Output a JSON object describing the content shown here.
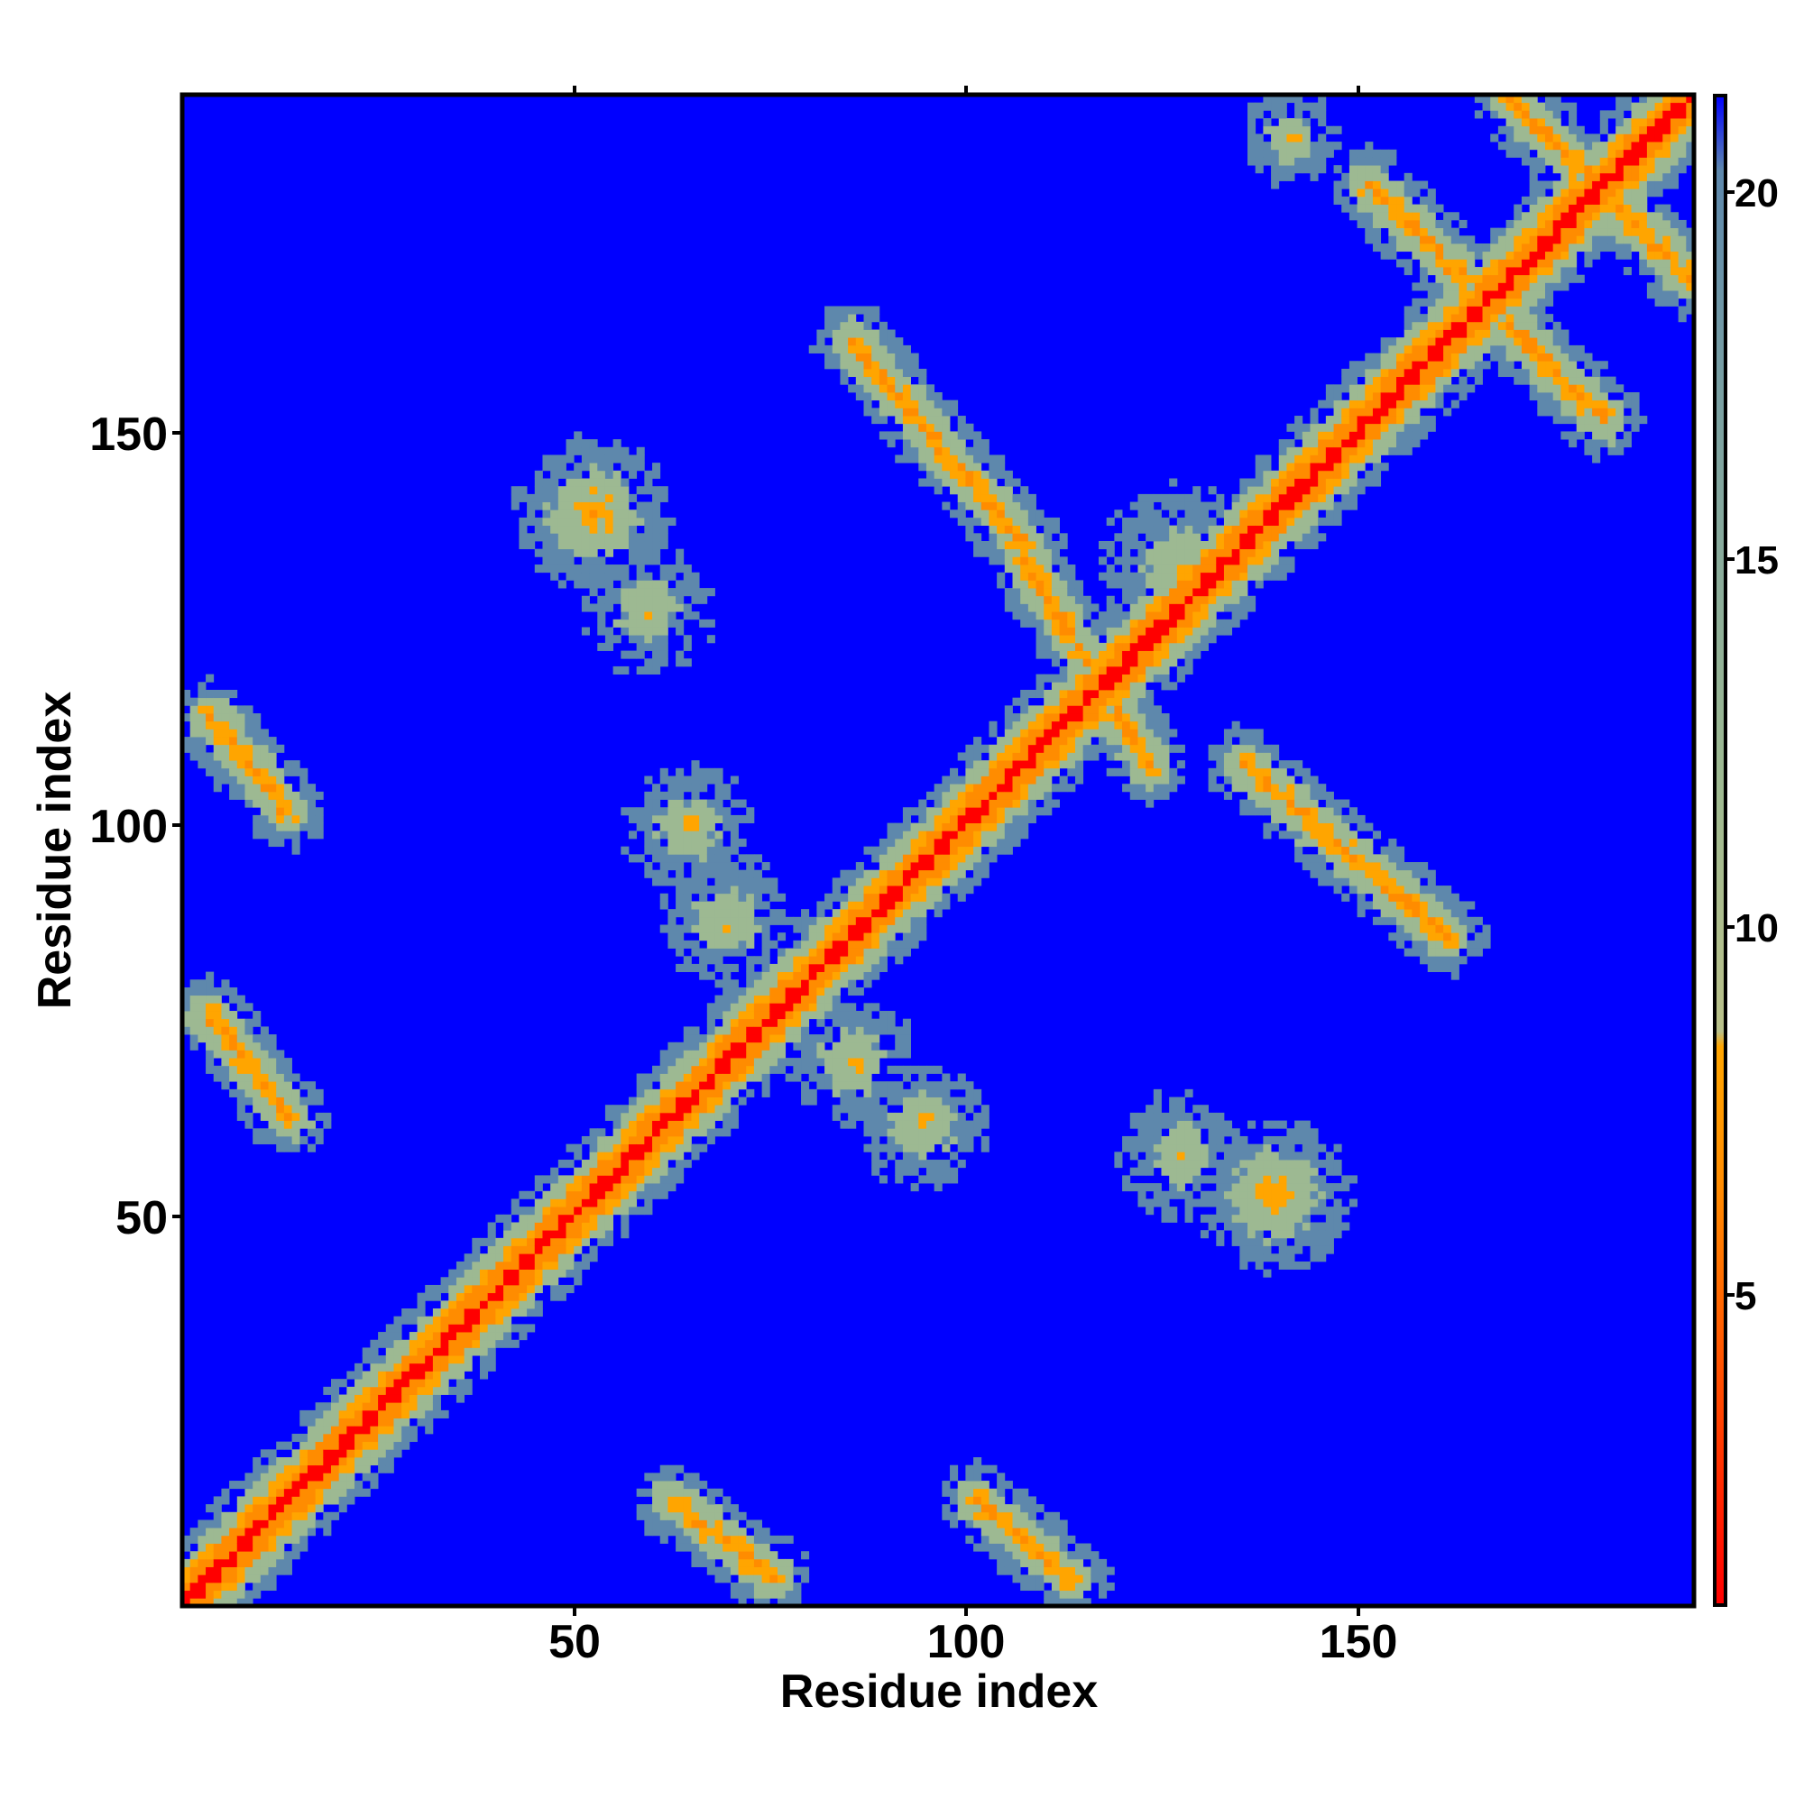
{
  "chart_data": {
    "type": "heatmap",
    "title": "",
    "xlabel": "Residue index",
    "ylabel": "Residue index",
    "xlim": [
      1,
      193
    ],
    "ylim": [
      1,
      193
    ],
    "x_ticks": [
      "50",
      "100",
      "150"
    ],
    "y_ticks": [
      "50",
      "100",
      "150"
    ],
    "colorbar": {
      "range": [
        0,
        21.5
      ],
      "ticks": [
        "5",
        "10",
        "15",
        "20"
      ],
      "colors": [
        "#ff0000",
        "#ff8c00",
        "#ffa500",
        "#9db992",
        "#5e88ac",
        "#0000ff"
      ]
    },
    "grid": false,
    "features": [
      {
        "kind": "diagonal",
        "from": [
          1,
          1
        ],
        "to": [
          193,
          193
        ],
        "value": 1
      },
      {
        "kind": "anti",
        "from": [
          4,
          76
        ],
        "to": [
          14,
          63
        ],
        "value": 6
      },
      {
        "kind": "anti",
        "from": [
          4,
          114
        ],
        "to": [
          14,
          102
        ],
        "value": 6
      },
      {
        "kind": "anti",
        "from": [
          63,
          14
        ],
        "to": [
          76,
          4
        ],
        "value": 6
      },
      {
        "kind": "anti",
        "from": [
          102,
          14
        ],
        "to": [
          114,
          4
        ],
        "value": 6
      },
      {
        "kind": "anti",
        "from": [
          86,
          162
        ],
        "to": [
          108,
          136
        ],
        "value": 6
      },
      {
        "kind": "anti",
        "from": [
          108,
          134
        ],
        "to": [
          124,
          108
        ],
        "value": 6
      },
      {
        "kind": "anti",
        "from": [
          136,
          108
        ],
        "to": [
          162,
          86
        ],
        "value": 6
      },
      {
        "kind": "anti",
        "from": [
          152,
          182
        ],
        "to": [
          164,
          170
        ],
        "value": 6
      },
      {
        "kind": "anti",
        "from": [
          170,
          193
        ],
        "to": [
          193,
          170
        ],
        "value": 6
      },
      {
        "kind": "anti",
        "from": [
          170,
          164
        ],
        "to": [
          182,
          152
        ],
        "value": 6
      },
      {
        "kind": "blob",
        "center": [
          53,
          140
        ],
        "radius": 4,
        "value": 6
      },
      {
        "kind": "blob",
        "center": [
          60,
          128
        ],
        "radius": 4,
        "value": 8
      },
      {
        "kind": "blob",
        "center": [
          65,
          100
        ],
        "radius": 4,
        "value": 8
      },
      {
        "kind": "blob",
        "center": [
          70,
          88
        ],
        "radius": 4,
        "value": 8
      },
      {
        "kind": "blob",
        "center": [
          86,
          70
        ],
        "radius": 4,
        "value": 8
      },
      {
        "kind": "blob",
        "center": [
          95,
          62
        ],
        "radius": 4,
        "value": 8
      },
      {
        "kind": "blob",
        "center": [
          128,
          58
        ],
        "radius": 4,
        "value": 8
      },
      {
        "kind": "blob",
        "center": [
          140,
          53
        ],
        "radius": 4,
        "value": 6
      },
      {
        "kind": "blob",
        "center": [
          128,
          133
        ],
        "radius": 5,
        "value": 8
      },
      {
        "kind": "blob",
        "center": [
          142,
          188
        ],
        "radius": 3,
        "value": 8
      }
    ]
  }
}
